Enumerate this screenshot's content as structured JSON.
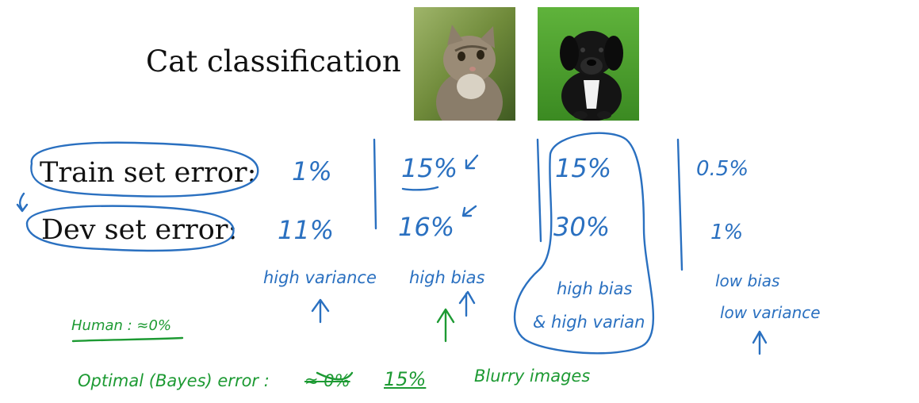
{
  "slide": {
    "title": "Cat classification",
    "row_labels": {
      "train": "Train set error:",
      "dev": "Dev set error:"
    },
    "images": [
      {
        "subject": "cat photo"
      },
      {
        "subject": "puppy photo"
      }
    ]
  },
  "cases": [
    {
      "train": "1%",
      "dev": "11%",
      "diagnosis": [
        "high variance"
      ]
    },
    {
      "train": "15%",
      "dev": "16%",
      "diagnosis": [
        "high bias"
      ]
    },
    {
      "train": "15%",
      "dev": "30%",
      "diagnosis": [
        "high bias",
        "& high varian"
      ]
    },
    {
      "train": "0.5%",
      "dev": "1%",
      "diagnosis": [
        "low bias",
        "low variance"
      ]
    }
  ],
  "green_notes": {
    "human": "Human : ≈0%",
    "optimal_prefix": "Optimal (Bayes) error :",
    "optimal_old": "≈ 0%",
    "optimal_new": "15%",
    "blurry": "Blurry images"
  },
  "colors": {
    "blue_ink": "#2a70c0",
    "green_ink": "#1d9a33",
    "text": "#111111"
  }
}
